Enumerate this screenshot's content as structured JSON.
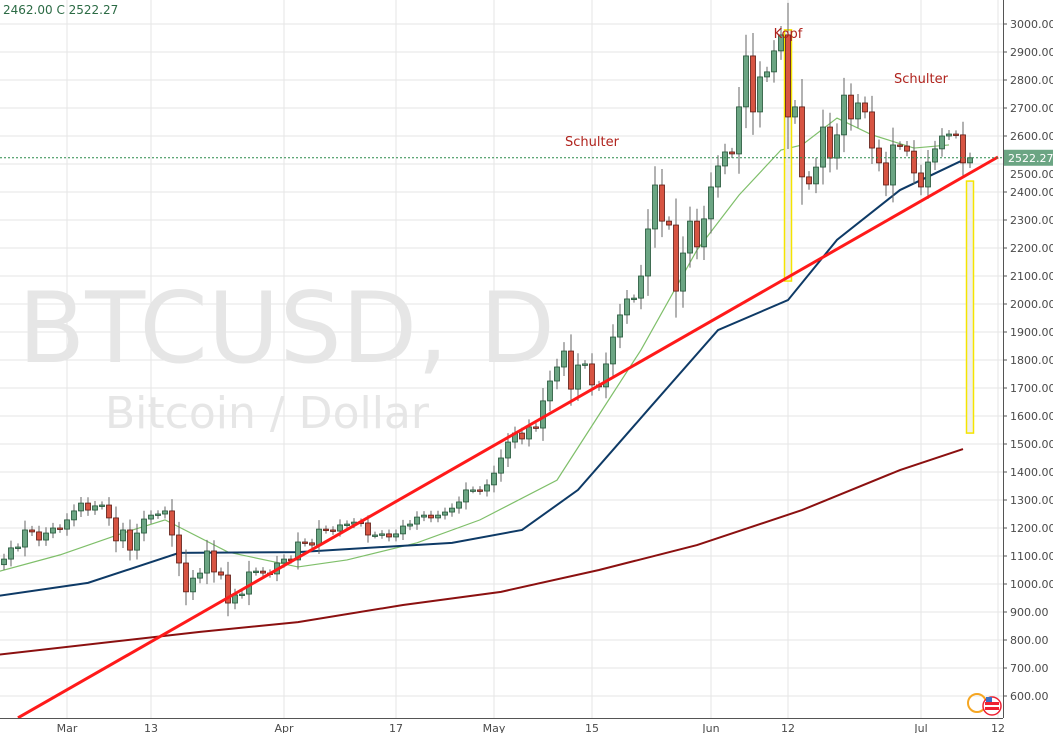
{
  "header": {
    "partial_ohlc": "2462.00 C 2522.27"
  },
  "chart_data": {
    "type": "candlestick",
    "symbol_watermark": "BTCUSD, D",
    "description_watermark": "Bitcoin / Dollar",
    "start_date": "2017-02-20",
    "interval": "1 day",
    "closes": [
      1089,
      1129,
      1132,
      1193,
      1186,
      1157,
      1182,
      1200,
      1196,
      1229,
      1261,
      1289,
      1264,
      1279,
      1282,
      1236,
      1154,
      1193,
      1121,
      1182,
      1232,
      1246,
      1250,
      1261,
      1175,
      1075,
      972,
      1021,
      1039,
      1118,
      1043,
      1032,
      932,
      961,
      964,
      1043,
      1046,
      1039,
      1036,
      1075,
      1089,
      1086,
      1150,
      1147,
      1139,
      1196,
      1193,
      1189,
      1211,
      1214,
      1221,
      1218,
      1175,
      1175,
      1179,
      1168,
      1179,
      1207,
      1214,
      1239,
      1246,
      1236,
      1246,
      1257,
      1271,
      1293,
      1336,
      1336,
      1332,
      1354,
      1396,
      1450,
      1507,
      1539,
      1518,
      1561,
      1557,
      1654,
      1725,
      1775,
      1832,
      1696,
      1782,
      1786,
      1711,
      1704,
      1786,
      1882,
      1961,
      2018,
      2021,
      2100,
      2268,
      2425,
      2296,
      2282,
      2046,
      2182,
      2296,
      2204,
      2304,
      2418,
      2493,
      2543,
      2536,
      2704,
      2886,
      2686,
      2811,
      2829,
      2904,
      2961,
      2668,
      2704,
      2454,
      2429,
      2489,
      2632,
      2521,
      2604,
      2746,
      2661,
      2718,
      2686,
      2557,
      2504,
      2425,
      2568,
      2564,
      2546,
      2468,
      2418,
      2507,
      2554,
      2600,
      2607,
      2604,
      2504,
      2522.27
    ],
    "last_price": "2522.27",
    "ylim": [
      540,
      3060
    ],
    "y_ticks": [
      "600.00",
      "700.00",
      "800.00",
      "900.00",
      "1000.00",
      "1100.00",
      "1200.00",
      "1300.00",
      "1400.00",
      "1500.00",
      "1600.00",
      "1700.00",
      "1800.00",
      "1900.00",
      "2000.00",
      "2100.00",
      "2200.00",
      "2300.00",
      "2400.00",
      "2500.00",
      "2600.00",
      "2700.00",
      "2800.00",
      "2900.00",
      "3000.00"
    ],
    "x_ticks": [
      {
        "label": "Mar",
        "date": "2017-03-01"
      },
      {
        "label": "13",
        "date": "2017-03-13"
      },
      {
        "label": "Apr",
        "date": "2017-04-01"
      },
      {
        "label": "17",
        "date": "2017-04-17"
      },
      {
        "label": "May",
        "date": "2017-05-01"
      },
      {
        "label": "15",
        "date": "2017-05-15"
      },
      {
        "label": "Jun",
        "date": "2017-06-01"
      },
      {
        "label": "12",
        "date": "2017-06-12"
      },
      {
        "label": "Jul",
        "date": "2017-07-01"
      },
      {
        "label": "12",
        "date": "2017-07-12"
      }
    ],
    "grid": true,
    "moving_averages": [
      {
        "color": "#7fbf6a",
        "points": [
          [
            "2017-02-19",
            1043
          ],
          [
            "2017-02-28",
            1104
          ],
          [
            "2017-03-09",
            1182
          ],
          [
            "2017-03-15",
            1229
          ],
          [
            "2017-03-24",
            1114
          ],
          [
            "2017-04-03",
            1061
          ],
          [
            "2017-04-10",
            1086
          ],
          [
            "2017-04-20",
            1147
          ],
          [
            "2017-04-29",
            1229
          ],
          [
            "2017-05-10",
            1371
          ],
          [
            "2017-05-16",
            1604
          ],
          [
            "2017-05-22",
            1836
          ],
          [
            "2017-05-30",
            2193
          ],
          [
            "2017-06-05",
            2389
          ],
          [
            "2017-06-11",
            2550
          ],
          [
            "2017-06-14",
            2568
          ],
          [
            "2017-06-19",
            2664
          ],
          [
            "2017-06-24",
            2604
          ],
          [
            "2017-06-30",
            2557
          ],
          [
            "2017-07-05",
            2568
          ]
        ]
      },
      {
        "color": "#0e3a66",
        "points": [
          [
            "2017-02-19",
            957
          ],
          [
            "2017-03-04",
            1004
          ],
          [
            "2017-03-17",
            1111
          ],
          [
            "2017-04-03",
            1114
          ],
          [
            "2017-04-25",
            1147
          ],
          [
            "2017-05-05",
            1193
          ],
          [
            "2017-05-13",
            1336
          ],
          [
            "2017-05-23",
            1622
          ],
          [
            "2017-06-02",
            1907
          ],
          [
            "2017-06-12",
            2014
          ],
          [
            "2017-06-19",
            2229
          ],
          [
            "2017-06-28",
            2407
          ],
          [
            "2017-07-07",
            2514
          ]
        ]
      },
      {
        "color": "#8b1010",
        "points": [
          [
            "2017-02-19",
            747
          ],
          [
            "2017-03-20",
            829
          ],
          [
            "2017-04-03",
            864
          ],
          [
            "2017-04-18",
            925
          ],
          [
            "2017-05-02",
            972
          ],
          [
            "2017-05-16",
            1050
          ],
          [
            "2017-05-30",
            1139
          ],
          [
            "2017-06-14",
            1264
          ],
          [
            "2017-06-28",
            1407
          ],
          [
            "2017-07-07",
            1482
          ]
        ]
      }
    ],
    "trendline": {
      "color": "#ff1a1a",
      "from": [
        "2017-02-22",
        522
      ],
      "to": [
        "2017-07-12",
        2525
      ]
    },
    "measure_boxes": [
      {
        "date": "2017-06-12",
        "top": 2979,
        "bottom": 2082,
        "color": "#f5e400"
      },
      {
        "date": "2017-07-08",
        "top": 2439,
        "bottom": 1539,
        "color": "#f5e400"
      }
    ],
    "annotations": [
      {
        "text": "Kopf",
        "date": "2017-06-12",
        "price": 2950
      },
      {
        "text": "Schulter",
        "date": "2017-05-15",
        "price": 2565
      },
      {
        "text": "Schulter",
        "date": "2017-07-01",
        "price": 2790
      }
    ],
    "colors": {
      "up": "#6ba583",
      "up_border": "#225437",
      "down": "#d75442",
      "down_border": "#5b1a13",
      "last_price_bg": "#6ba583"
    }
  }
}
